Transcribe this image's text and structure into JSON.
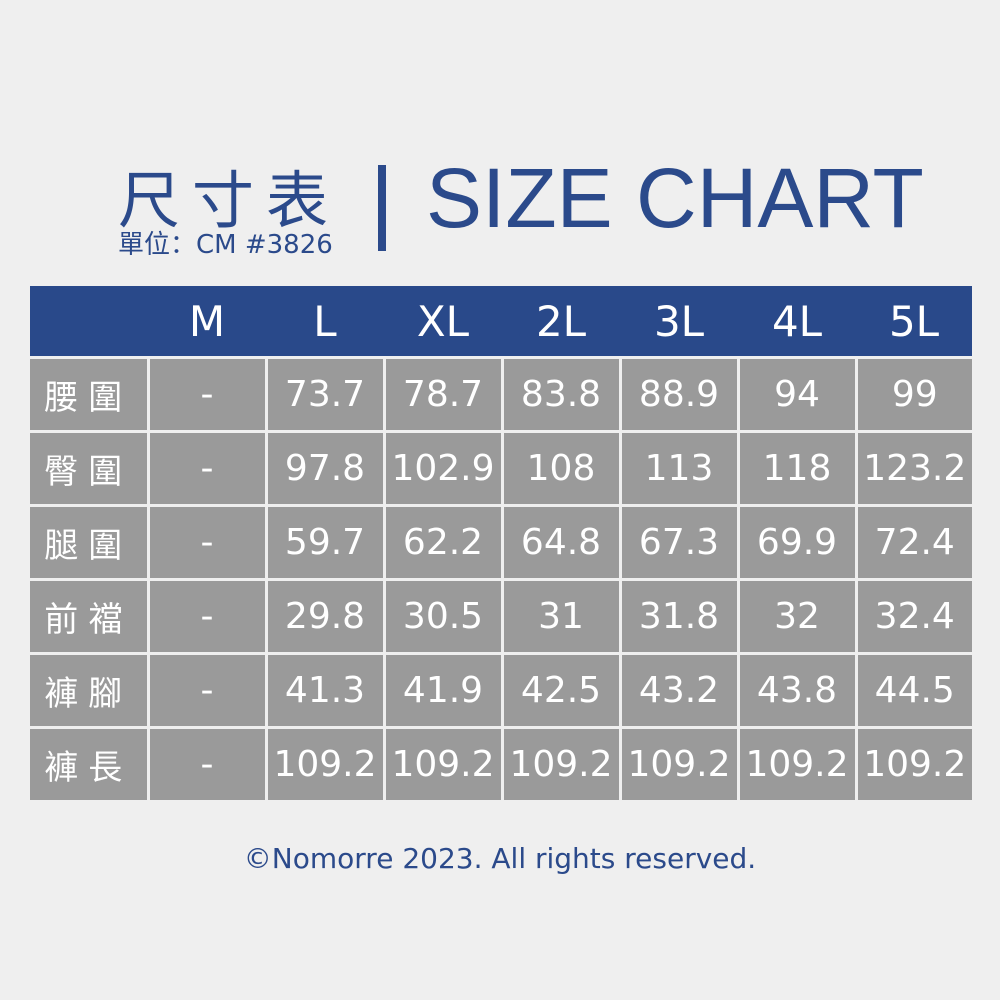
{
  "header": {
    "title_zh": "尺寸表",
    "unit_line": "單位：CM #3826",
    "title_en": "SIZE CHART"
  },
  "table": {
    "sizes": [
      "M",
      "L",
      "XL",
      "2L",
      "3L",
      "4L",
      "5L"
    ],
    "rows": [
      {
        "label": "腰圍",
        "values": [
          "-",
          "73.7",
          "78.7",
          "83.8",
          "88.9",
          "94",
          "99"
        ]
      },
      {
        "label": "臀圍",
        "values": [
          "-",
          "97.8",
          "102.9",
          "108",
          "113",
          "118",
          "123.2"
        ]
      },
      {
        "label": "腿圍",
        "values": [
          "-",
          "59.7",
          "62.2",
          "64.8",
          "67.3",
          "69.9",
          "72.4"
        ]
      },
      {
        "label": "前襠",
        "values": [
          "-",
          "29.8",
          "30.5",
          "31",
          "31.8",
          "32",
          "32.4"
        ]
      },
      {
        "label": "褲腳",
        "values": [
          "-",
          "41.3",
          "41.9",
          "42.5",
          "43.2",
          "43.8",
          "44.5"
        ]
      },
      {
        "label": "褲長",
        "values": [
          "-",
          "109.2",
          "109.2",
          "109.2",
          "109.2",
          "109.2",
          "109.2"
        ]
      }
    ]
  },
  "footer": {
    "copyright": "©Nomorre 2023. All rights reserved."
  },
  "colors": {
    "brand_blue": "#29498a",
    "cell_gray": "#9a9a9a",
    "background": "#efefef"
  }
}
